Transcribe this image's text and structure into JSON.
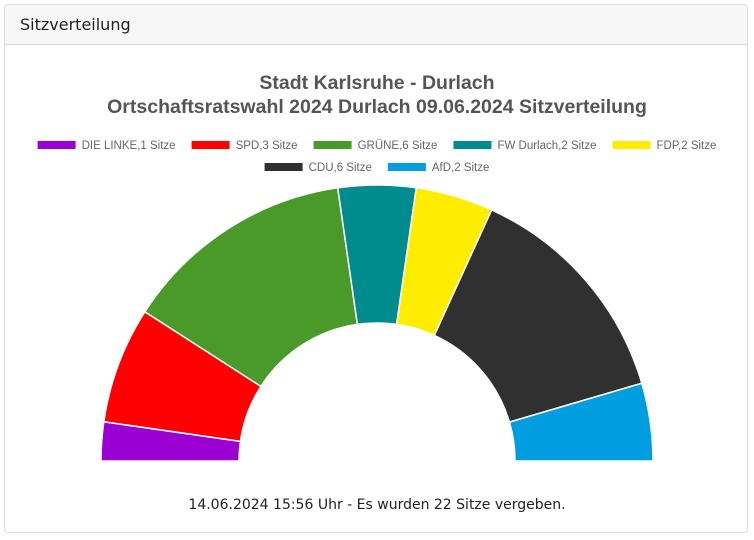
{
  "panel": {
    "title": "Sitzverteilung"
  },
  "chart_data": {
    "type": "pie",
    "subtype": "semicircle-parliament",
    "title_lines": [
      "Stadt Karlsruhe - Durlach",
      "Ortschaftsratswahl 2024 Durlach 09.06.2024 Sitzverteilung"
    ],
    "legend_placement": "top-center",
    "series": [
      {
        "name": "DIE LINKE",
        "seats": 1,
        "color": "#9b00d3",
        "legend_label": "DIE LINKE,1 Sitze"
      },
      {
        "name": "SPD",
        "seats": 3,
        "color": "#ff0000",
        "legend_label": "SPD,3 Sitze"
      },
      {
        "name": "GRÜNE",
        "seats": 6,
        "color": "#4a9a2a",
        "legend_label": "GRÜNE,6 Sitze"
      },
      {
        "name": "FW Durlach",
        "seats": 2,
        "color": "#008b8e",
        "legend_label": "FW Durlach,2 Sitze"
      },
      {
        "name": "FDP",
        "seats": 2,
        "color": "#ffed00",
        "legend_label": "FDP,2 Sitze"
      },
      {
        "name": "CDU",
        "seats": 6,
        "color": "#303030",
        "legend_label": "CDU,6 Sitze"
      },
      {
        "name": "AfD",
        "seats": 2,
        "color": "#009ee0",
        "legend_label": "AfD,2 Sitze"
      }
    ],
    "total_seats": 22
  },
  "footer": {
    "text": "14.06.2024 15:56 Uhr - Es wurden 22 Sitze vergeben."
  }
}
